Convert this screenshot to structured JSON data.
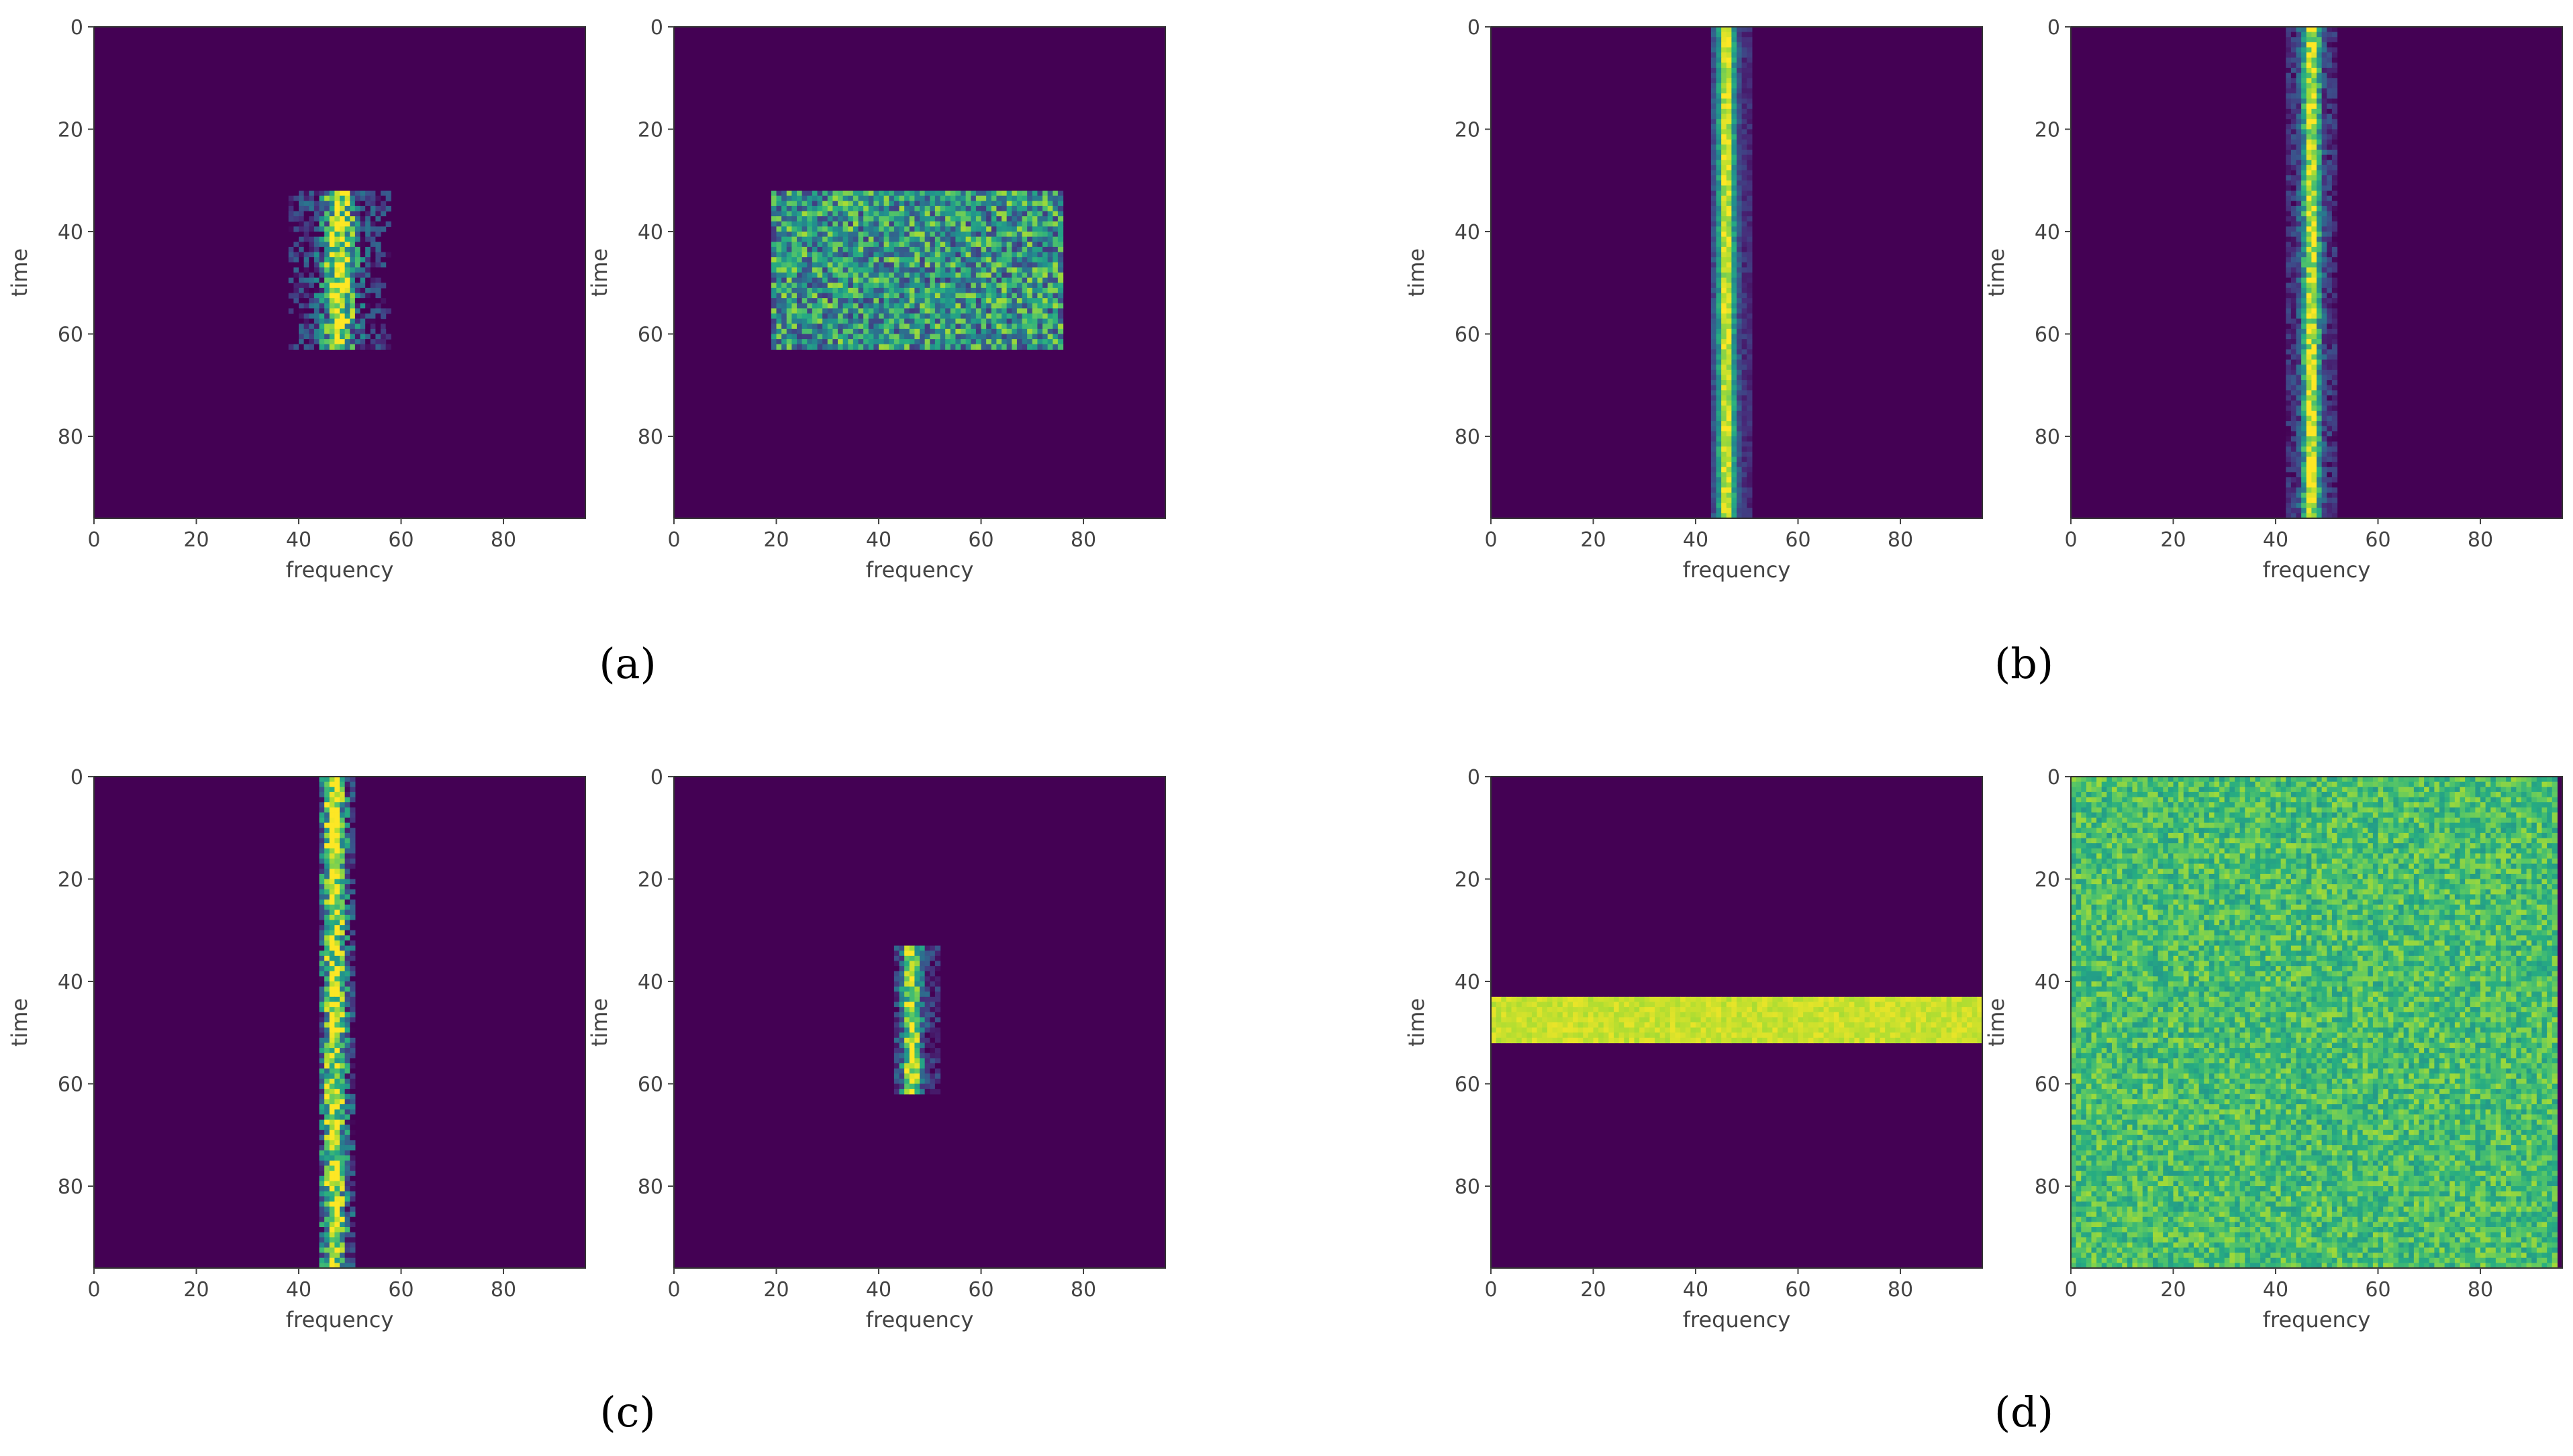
{
  "chart_data": [
    {
      "type": "heatmap",
      "group": "(a)",
      "xlabel": "frequency",
      "ylabel": "time",
      "xticks": [
        0,
        20,
        40,
        60,
        80
      ],
      "yticks": [
        0,
        20,
        40,
        60,
        80
      ],
      "xlim": [
        0,
        96
      ],
      "ylim": [
        96,
        0
      ],
      "signal": {
        "shape": "box",
        "freq": [
          38,
          58
        ],
        "time": [
          32,
          63
        ],
        "center": 48,
        "width": 3,
        "speckle": 0.45,
        "ragged": true
      }
    },
    {
      "type": "heatmap",
      "group": "(a)",
      "xlabel": "frequency",
      "ylabel": "time",
      "xticks": [
        0,
        20,
        40,
        60,
        80
      ],
      "yticks": [
        0,
        20,
        40,
        60,
        80
      ],
      "xlim": [
        0,
        96
      ],
      "ylim": [
        96,
        0
      ],
      "signal": {
        "shape": "noise",
        "freq": [
          19,
          76
        ],
        "time": [
          32,
          63
        ],
        "level": 0.52,
        "speckle": 0.35
      }
    },
    {
      "type": "heatmap",
      "group": "(b)",
      "xlabel": "frequency",
      "ylabel": "time",
      "xticks": [
        0,
        20,
        40,
        60,
        80
      ],
      "yticks": [
        0,
        20,
        40,
        60,
        80
      ],
      "xlim": [
        0,
        96
      ],
      "ylim": [
        96,
        0
      ],
      "signal": {
        "shape": "band",
        "freq": [
          43,
          51
        ],
        "time": [
          0,
          96
        ],
        "center": 46,
        "width": 1.8,
        "speckle": 0.12
      }
    },
    {
      "type": "heatmap",
      "group": "(b)",
      "xlabel": "frequency",
      "ylabel": "time",
      "xticks": [
        0,
        20,
        40,
        60,
        80
      ],
      "yticks": [
        0,
        20,
        40,
        60,
        80
      ],
      "xlim": [
        0,
        96
      ],
      "ylim": [
        96,
        0
      ],
      "signal": {
        "shape": "band",
        "freq": [
          42,
          52
        ],
        "time": [
          0,
          96
        ],
        "center": 47,
        "width": 1.8,
        "speckle": 0.22
      }
    },
    {
      "type": "heatmap",
      "group": "(c)",
      "xlabel": "frequency",
      "ylabel": "time",
      "xticks": [
        0,
        20,
        40,
        60,
        80
      ],
      "yticks": [
        0,
        20,
        40,
        60,
        80
      ],
      "xlim": [
        0,
        96
      ],
      "ylim": [
        96,
        0
      ],
      "signal": {
        "shape": "band",
        "freq": [
          44,
          51
        ],
        "time": [
          0,
          96
        ],
        "center": 47,
        "width": 2.2,
        "speckle": 0.4
      }
    },
    {
      "type": "heatmap",
      "group": "(c)",
      "xlabel": "frequency",
      "ylabel": "time",
      "xticks": [
        0,
        20,
        40,
        60,
        80
      ],
      "yticks": [
        0,
        20,
        40,
        60,
        80
      ],
      "xlim": [
        0,
        96
      ],
      "ylim": [
        96,
        0
      ],
      "signal": {
        "shape": "band",
        "freq": [
          43,
          52
        ],
        "time": [
          33,
          62
        ],
        "center": 46.5,
        "width": 1.8,
        "speckle": 0.3
      }
    },
    {
      "type": "heatmap",
      "group": "(d)",
      "xlabel": "frequency",
      "ylabel": "time",
      "xticks": [
        0,
        20,
        40,
        60,
        80
      ],
      "yticks": [
        0,
        20,
        40,
        60,
        80
      ],
      "xlim": [
        0,
        96
      ],
      "ylim": [
        96,
        0
      ],
      "signal": {
        "shape": "hband",
        "freq": [
          0,
          96
        ],
        "time": [
          43,
          52
        ],
        "level": 0.92,
        "speckle": 0.05
      }
    },
    {
      "type": "heatmap",
      "group": "(d)",
      "xlabel": "frequency",
      "ylabel": "time",
      "xticks": [
        0,
        20,
        40,
        60,
        80
      ],
      "yticks": [
        0,
        20,
        40,
        60,
        80
      ],
      "xlim": [
        0,
        96
      ],
      "ylim": [
        96,
        0
      ],
      "signal": {
        "shape": "noise",
        "freq": [
          0,
          95
        ],
        "time": [
          0,
          96
        ],
        "level": 0.7,
        "speckle": 0.16
      }
    }
  ],
  "panel_labels": {
    "a": "(a)",
    "b": "(b)",
    "c": "(c)",
    "d": "(d)"
  },
  "colors": {
    "background": "#440154",
    "colormap": "viridis",
    "axis": "#444444"
  }
}
